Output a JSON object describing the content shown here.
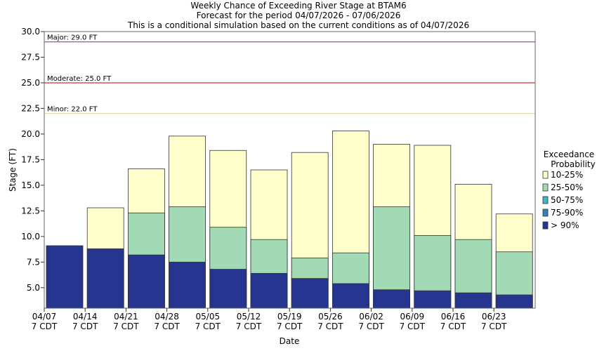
{
  "chart_data": {
    "type": "bar",
    "title_lines": [
      "Weekly Chance of Exceeding River Stage at BTAM6",
      "Forecast for the period 04/07/2026 - 07/06/2026",
      "This is a conditional simulation based on the current conditions as of 04/07/2026"
    ],
    "xlabel": "Date",
    "ylabel": "Stage (FT)",
    "ylim": [
      3.0,
      30.0
    ],
    "y_ticks": [
      5.0,
      7.5,
      10.0,
      12.5,
      15.0,
      17.5,
      20.0,
      22.5,
      25.0,
      27.5,
      30.0
    ],
    "y_tick_labels": [
      "5.0",
      "7.5",
      "10.0",
      "12.5",
      "15.0",
      "17.5",
      "20.0",
      "22.5",
      "25.0",
      "27.5",
      "30.0"
    ],
    "x_ticks": [
      {
        "date": "04/07",
        "time": "7 CDT"
      },
      {
        "date": "04/14",
        "time": "7 CDT"
      },
      {
        "date": "04/21",
        "time": "7 CDT"
      },
      {
        "date": "04/28",
        "time": "7 CDT"
      },
      {
        "date": "05/05",
        "time": "7 CDT"
      },
      {
        "date": "05/12",
        "time": "7 CDT"
      },
      {
        "date": "05/19",
        "time": "7 CDT"
      },
      {
        "date": "05/26",
        "time": "7 CDT"
      },
      {
        "date": "06/02",
        "time": "7 CDT"
      },
      {
        "date": "06/09",
        "time": "7 CDT"
      },
      {
        "date": "06/16",
        "time": "7 CDT"
      },
      {
        "date": "06/23",
        "time": "7 CDT"
      }
    ],
    "categories": [
      "04/07",
      "04/14",
      "04/21",
      "04/28",
      "05/05",
      "05/12",
      "05/19",
      "05/26",
      "06/02",
      "06/09",
      "06/16",
      "06/23"
    ],
    "series": [
      {
        "name": "> 90%",
        "color": "#26358f",
        "values": [
          9.1,
          8.8,
          8.2,
          7.5,
          6.8,
          6.4,
          5.9,
          5.4,
          4.8,
          4.7,
          4.5,
          4.3
        ]
      },
      {
        "name": "75-90%",
        "color": "#3b7fb8",
        "values": [
          9.1,
          8.8,
          8.2,
          7.5,
          6.8,
          6.4,
          5.9,
          5.4,
          4.8,
          4.7,
          4.5,
          4.3
        ]
      },
      {
        "name": "50-75%",
        "color": "#41b6c4",
        "values": [
          9.1,
          8.8,
          8.2,
          7.5,
          6.8,
          6.4,
          5.9,
          5.4,
          4.8,
          4.7,
          4.5,
          4.3
        ]
      },
      {
        "name": "25-50%",
        "color": "#a1dab4",
        "values": [
          9.1,
          8.8,
          12.3,
          12.9,
          10.9,
          9.7,
          7.9,
          8.4,
          12.9,
          10.1,
          9.7,
          8.5
        ]
      },
      {
        "name": "10-25%",
        "color": "#ffffcc",
        "values": [
          9.1,
          12.8,
          16.6,
          19.8,
          18.4,
          16.5,
          18.2,
          20.3,
          19.0,
          18.9,
          15.1,
          12.2
        ]
      }
    ],
    "thresholds": [
      {
        "label": "Major: 29.0 FT",
        "value": 29.0,
        "color": "#cc33cc"
      },
      {
        "label": "Moderate: 25.0 FT",
        "value": 25.0,
        "color": "#cc3333"
      },
      {
        "label": "Minor: 22.0 FT",
        "value": 22.0,
        "color": "#f0e060"
      }
    ],
    "legend": {
      "title_lines": [
        "Exceedance",
        "Probability"
      ],
      "position": "right",
      "entries": [
        {
          "label": "10-25%",
          "color": "#ffffcc"
        },
        {
          "label": "25-50%",
          "color": "#a1dab4"
        },
        {
          "label": "50-75%",
          "color": "#41b6c4"
        },
        {
          "label": "75-90%",
          "color": "#3b7fb8"
        },
        {
          "label": "> 90%",
          "color": "#26358f"
        }
      ]
    },
    "grid": false
  }
}
